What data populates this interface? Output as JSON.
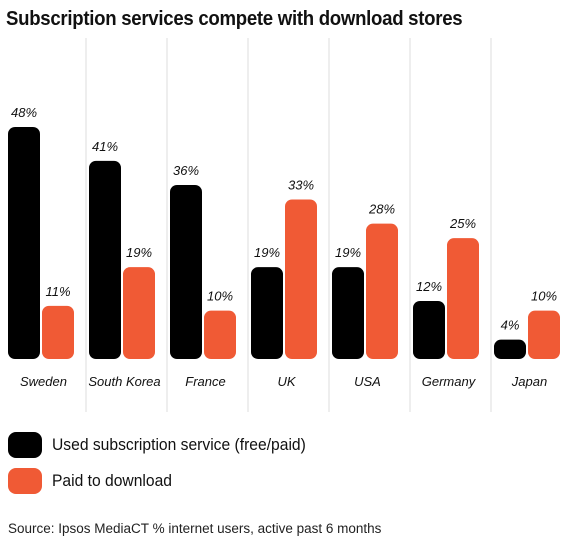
{
  "colors": {
    "subscription": "#000000",
    "download": "#f05a35",
    "gridline": "#dddddd"
  },
  "chart_data": {
    "type": "bar",
    "title": "Subscription services compete with download stores",
    "categories": [
      "Sweden",
      "South Korea",
      "France",
      "UK",
      "USA",
      "Germany",
      "Japan"
    ],
    "series": [
      {
        "name": "Used subscription service (free/paid)",
        "values": [
          48,
          41,
          36,
          19,
          19,
          12,
          4
        ],
        "labels": [
          "48%",
          "41%",
          "36%",
          "19%",
          "19%",
          "12%",
          "4%"
        ]
      },
      {
        "name": "Paid to download",
        "values": [
          11,
          19,
          10,
          33,
          28,
          25,
          10
        ],
        "labels": [
          "11%",
          "19%",
          "10%",
          "33%",
          "28%",
          "25%",
          "10%"
        ]
      }
    ],
    "ylim": [
      0,
      48
    ],
    "legend_position": "bottom-left",
    "source": "Source: Ipsos MediaCT % internet users, active past 6 months"
  }
}
